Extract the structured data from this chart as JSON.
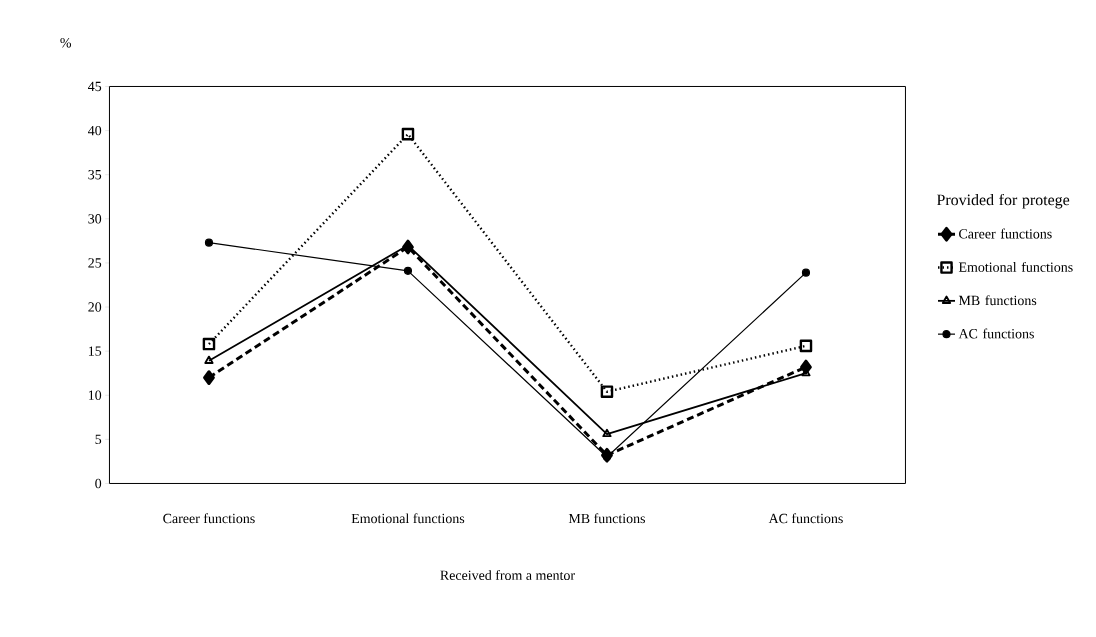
{
  "chart_data": {
    "type": "line",
    "ylabel": "%",
    "xlabel": "Received from a mentor",
    "legend_title": "Provided for protege",
    "categories": [
      "Career functions",
      "Emotional functions",
      "MB functions",
      "AC functions"
    ],
    "ylim": [
      0,
      45
    ],
    "yticks": [
      0,
      5,
      10,
      15,
      20,
      25,
      30,
      35,
      40,
      45
    ],
    "legend": "right",
    "grid": false,
    "series": [
      {
        "name": "Career functions",
        "color": "#000000",
        "marker": "diamond",
        "line_style": "dashed",
        "values": [
          12.0,
          26.8,
          3.2,
          13.2
        ]
      },
      {
        "name": "Emotional functions",
        "color": "#000000",
        "marker": "square",
        "line_style": "dotted",
        "values": [
          15.8,
          39.6,
          10.4,
          15.6
        ]
      },
      {
        "name": "MB functions",
        "color": "#000000",
        "marker": "triangle",
        "line_style": "solid",
        "values": [
          13.9,
          27.0,
          5.6,
          12.5
        ]
      },
      {
        "name": "AC functions",
        "color": "#000000",
        "marker": "circle",
        "line_style": "solid",
        "values": [
          27.3,
          24.1,
          3.0,
          23.9
        ]
      }
    ]
  }
}
